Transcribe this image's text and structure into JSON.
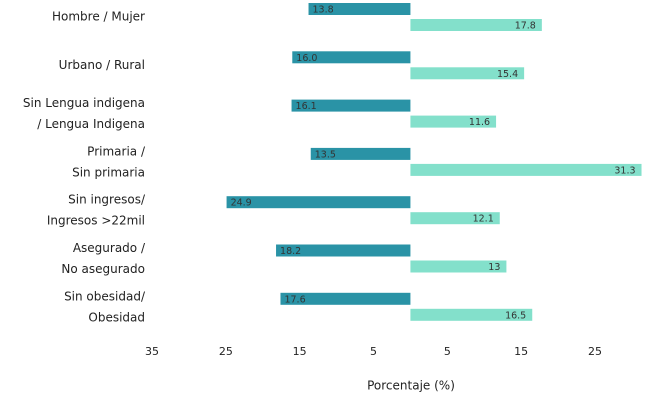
{
  "chart_data": {
    "type": "diverging-bar",
    "categories": [
      [
        "Hombre / Mujer"
      ],
      [
        "Urbano / Rural"
      ],
      [
        "Sin Lengua indigena",
        "/ Lengua Indigena"
      ],
      [
        "Primaria /",
        "Sin primaria"
      ],
      [
        "Sin ingresos/",
        "Ingresos >22mil"
      ],
      [
        "Asegurado /",
        "No asegurado"
      ],
      [
        "Sin obesidad/",
        "Obesidad"
      ]
    ],
    "series": [
      {
        "color": "#2a93a6",
        "values": [
          -13.8,
          -16.0,
          -16.1,
          -13.5,
          -24.9,
          -18.2,
          -17.6
        ],
        "value_labels": [
          "13.8",
          "16.0",
          "16.1",
          "13.5",
          "24.9",
          "18.2",
          "17.6"
        ]
      },
      {
        "color": "#83e0cb",
        "values": [
          17.8,
          15.4,
          11.6,
          31.3,
          12.1,
          13.0,
          16.5
        ]
      }
    ],
    "xlabel": "Porcentaje (%)",
    "xlim": [
      -35,
      31.5
    ],
    "xticks": [
      {
        "value": -35,
        "label": "35"
      },
      {
        "value": -25,
        "label": "25"
      },
      {
        "value": -15,
        "label": "15"
      },
      {
        "value": -5,
        "label": "5"
      },
      5,
      15,
      25
    ]
  }
}
